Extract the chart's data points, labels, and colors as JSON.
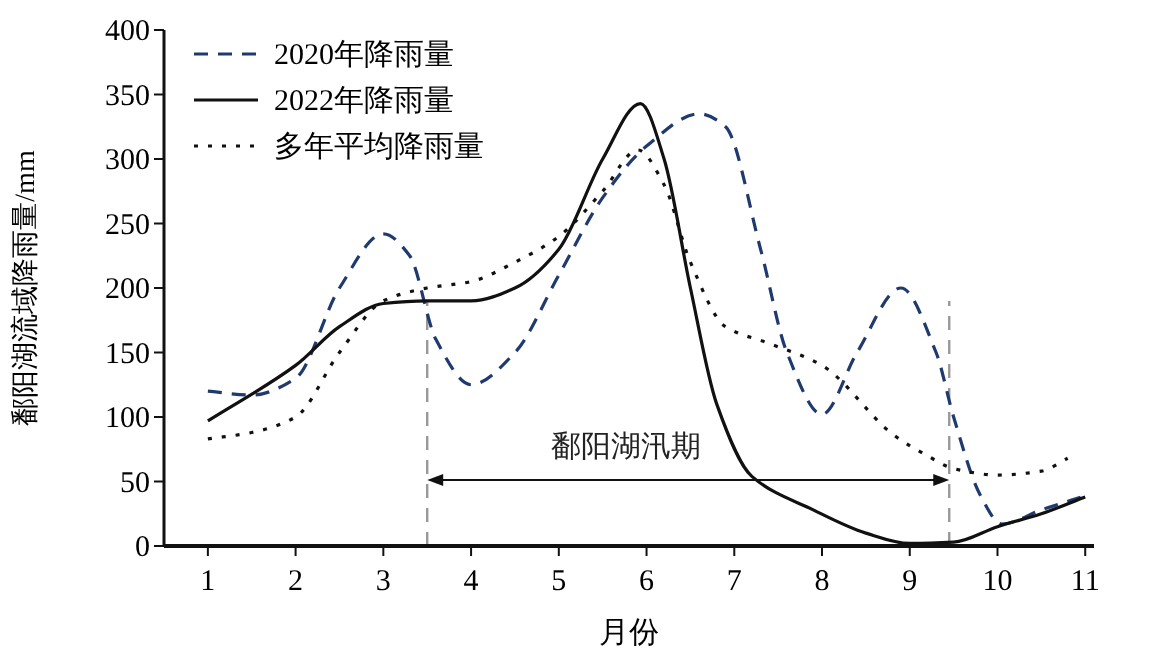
{
  "chart_data": {
    "type": "line",
    "xlabel": "月份",
    "ylabel": "鄱阳湖流域降雨量/mm",
    "xlim": [
      0.5,
      11.1
    ],
    "xticks": [
      1,
      2,
      3,
      4,
      5,
      6,
      7,
      8,
      9,
      10,
      11
    ],
    "ylim": [
      0,
      400
    ],
    "yticks": [
      0,
      50,
      100,
      150,
      200,
      250,
      300,
      350,
      400
    ],
    "grid": false,
    "legend": "top left",
    "marker": "none",
    "series": [
      {
        "name": "2020年降雨量",
        "color": "#1f3a6e",
        "line_style": "dashed",
        "x": [
          1,
          1.5,
          2,
          2.5,
          3,
          3.3,
          3.6,
          4,
          4.5,
          5,
          5.5,
          6,
          6.6,
          6.9,
          7.3,
          7.6,
          8,
          8.4,
          8.9,
          9.3,
          9.5,
          9.8,
          10.05,
          10.5,
          11
        ],
        "values": [
          120,
          117,
          130,
          200,
          242,
          225,
          160,
          125,
          150,
          210,
          270,
          310,
          335,
          325,
          230,
          150,
          102,
          150,
          200,
          150,
          100,
          40,
          17,
          28,
          39
        ]
      },
      {
        "name": "2022年降雨量",
        "color": "#111111",
        "line_style": "solid",
        "x": [
          1,
          2,
          2.5,
          3,
          3.5,
          4,
          4.5,
          5,
          5.5,
          5.93,
          6.2,
          6.5,
          6.8,
          7.2,
          7.9,
          8.5,
          9,
          9.5,
          10,
          10.5,
          11
        ],
        "values": [
          97,
          140,
          170,
          188,
          190,
          190,
          200,
          230,
          300,
          343,
          300,
          200,
          110,
          54,
          28,
          10,
          2,
          3,
          15,
          25,
          38
        ]
      },
      {
        "name": "多年平均降雨量",
        "color": "#111111",
        "line_style": "dotted",
        "x": [
          1,
          1.5,
          2,
          2.5,
          3,
          3.5,
          4,
          4.5,
          5,
          5.5,
          5.9,
          6.2,
          6.5,
          6.9,
          7.4,
          8,
          8.8,
          9.2,
          9.5,
          10,
          10.5,
          10.8
        ],
        "values": [
          83,
          88,
          100,
          150,
          190,
          200,
          205,
          220,
          240,
          275,
          307,
          280,
          220,
          170,
          157,
          140,
          87,
          70,
          60,
          55,
          58,
          68
        ]
      }
    ],
    "ref_lines": [
      {
        "axis": "x",
        "value": 3.5,
        "color": "#999999",
        "line_style": "dashed"
      },
      {
        "axis": "x",
        "value": 9.45,
        "color": "#999999",
        "line_style": "dashed"
      }
    ],
    "annotations": [
      "鄱阳湖汛期"
    ]
  }
}
